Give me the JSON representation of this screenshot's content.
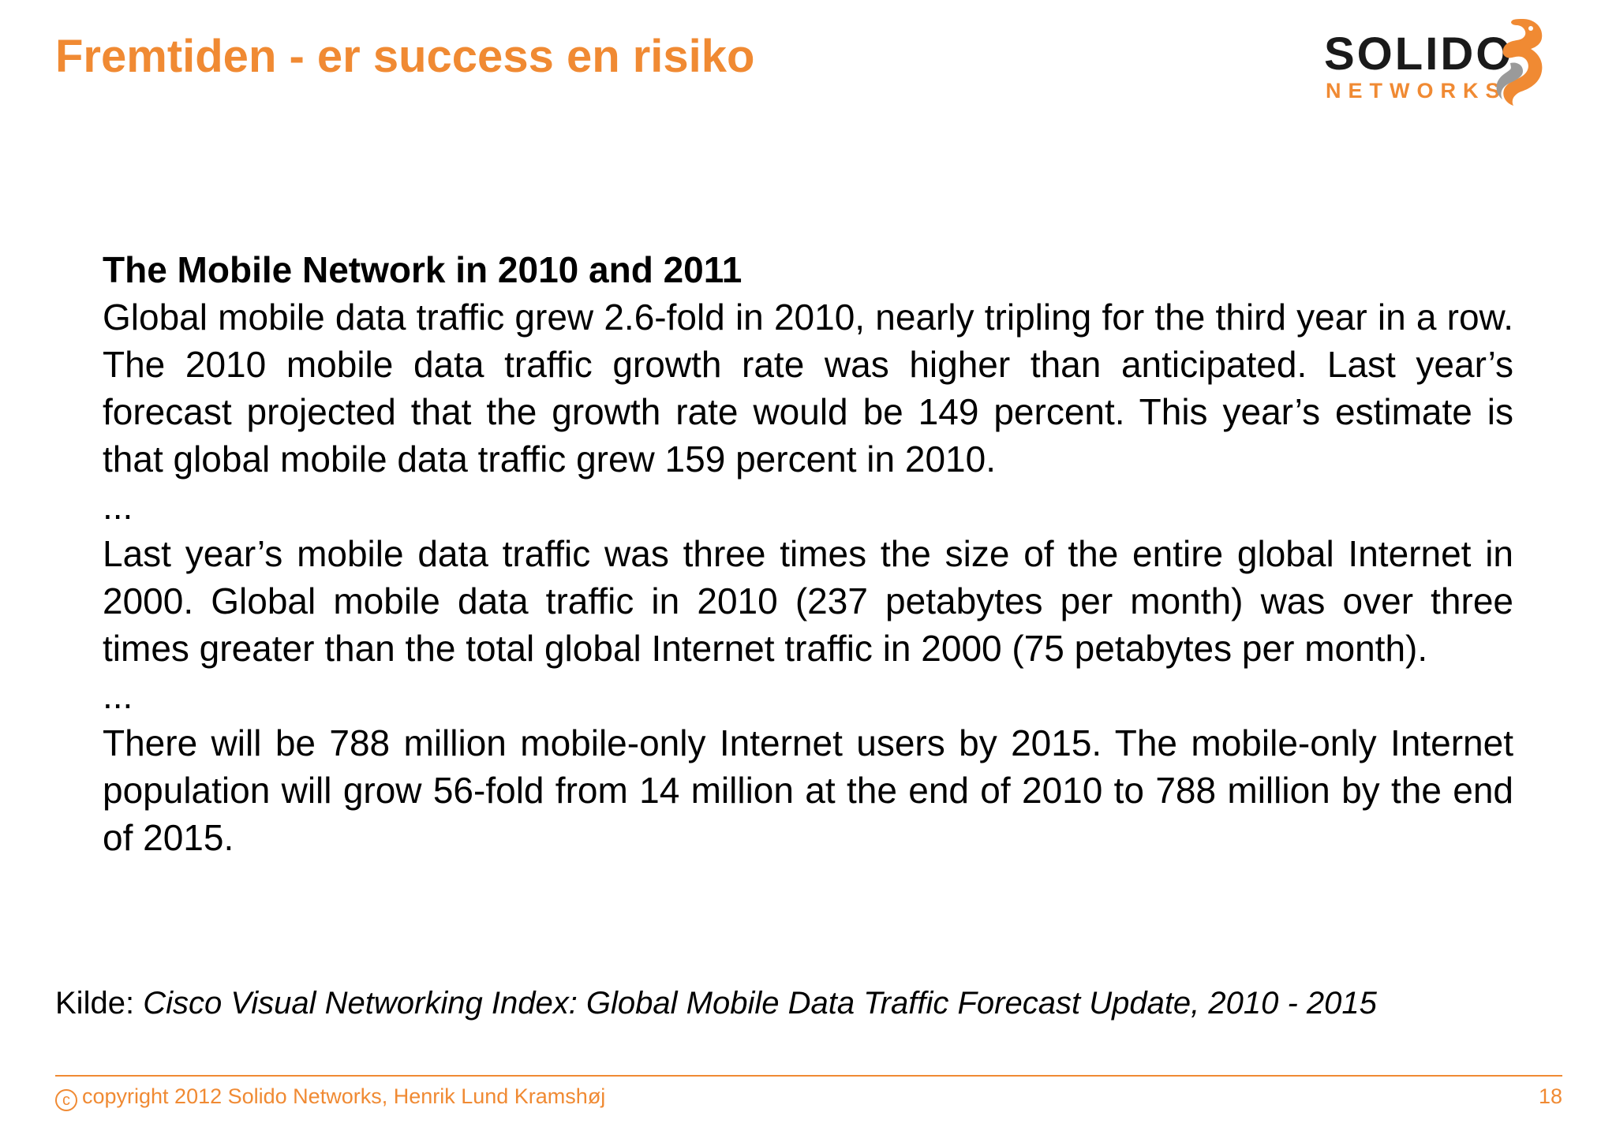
{
  "slide": {
    "title": "Fremtiden - er success en risiko"
  },
  "logo": {
    "wordmark": "SOLIDO",
    "subtitle": "NETWORKS",
    "icon": "seahorse-logo-icon",
    "colors": {
      "wordmark": "#1a1a1a",
      "accent": "#f08a33",
      "icon": "#f08a33"
    }
  },
  "body": {
    "heading": "The Mobile Network in 2010 and 2011",
    "paragraphs": [
      "Global mobile data traffic grew 2.6-fold in 2010, nearly tripling for the third year in a row. The 2010 mobile data traffic growth rate was higher than anticipated. Last year’s forecast projected that the growth rate would be 149 percent.  This year’s estimate is that global mobile data traffic grew 159 percent in 2010.",
      "...",
      "Last year’s mobile data traffic was three times the size of the entire global Internet in 2000.  Global mobile data traffic in 2010 (237 petabytes per month) was over three times greater than the total global Internet traffic in 2000 (75 petabytes per month).",
      "...",
      "There will be 788 million mobile-only Internet users by 2015.  The mobile-only Internet population will grow 56-fold from 14 million at the end of 2010 to 788 million by the end of 2015."
    ]
  },
  "source": {
    "label": "Kilde:",
    "title": "Cisco Visual Networking Index: Global Mobile Data Traffic Forecast Update, 2010 - 2015"
  },
  "footer": {
    "copyright_symbol": "c",
    "copyright_text": "copyright 2012 Solido Networks, Henrik Lund Kramshøj",
    "page_number": "18"
  },
  "colors": {
    "accent": "#f08a33",
    "text": "#000000",
    "background": "#ffffff"
  }
}
